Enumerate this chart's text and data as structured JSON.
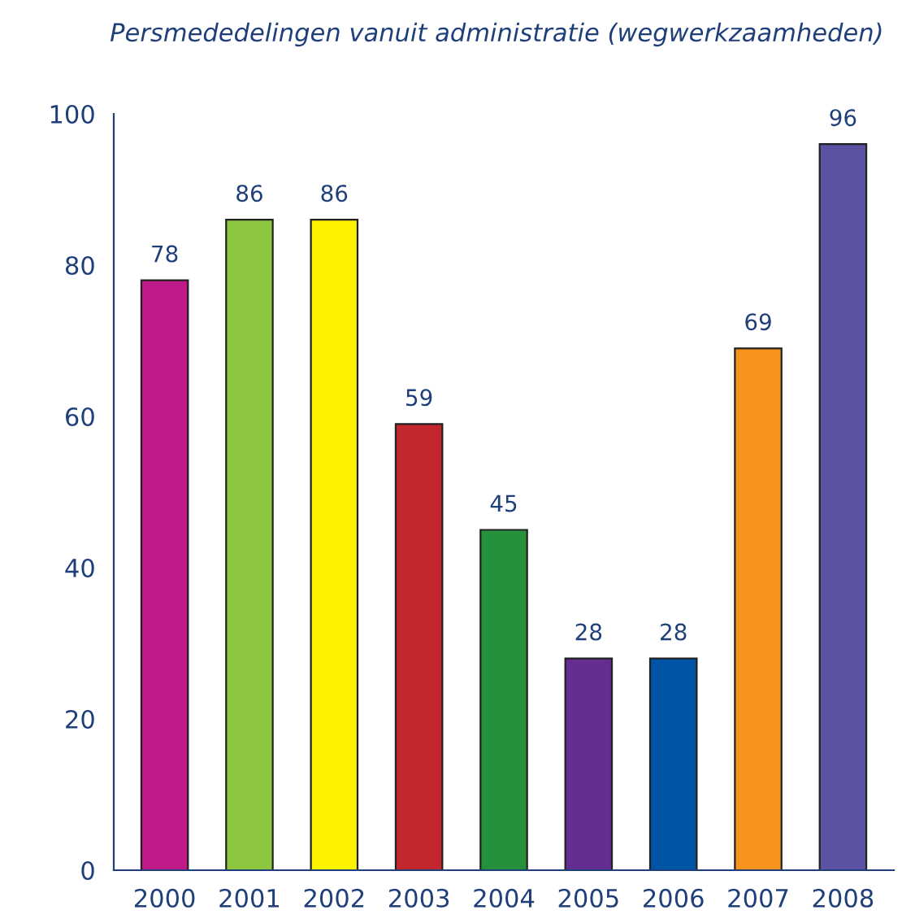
{
  "chart_data": {
    "type": "bar",
    "title": "Persmededelingen vanuit administratie (wegwerkzaamheden)",
    "categories": [
      "2000",
      "2001",
      "2002",
      "2003",
      "2004",
      "2005",
      "2006",
      "2007",
      "2008"
    ],
    "values": [
      78,
      86,
      86,
      59,
      45,
      28,
      28,
      69,
      96
    ],
    "colors": [
      "#c0198a",
      "#8dc63f",
      "#fff200",
      "#c1272d",
      "#26913b",
      "#662d91",
      "#0054a6",
      "#f7941d",
      "#5b52a3"
    ],
    "ylim": [
      0,
      100
    ],
    "yticks": [
      0,
      20,
      40,
      60,
      80,
      100
    ],
    "grid": false,
    "data_labels": true
  }
}
